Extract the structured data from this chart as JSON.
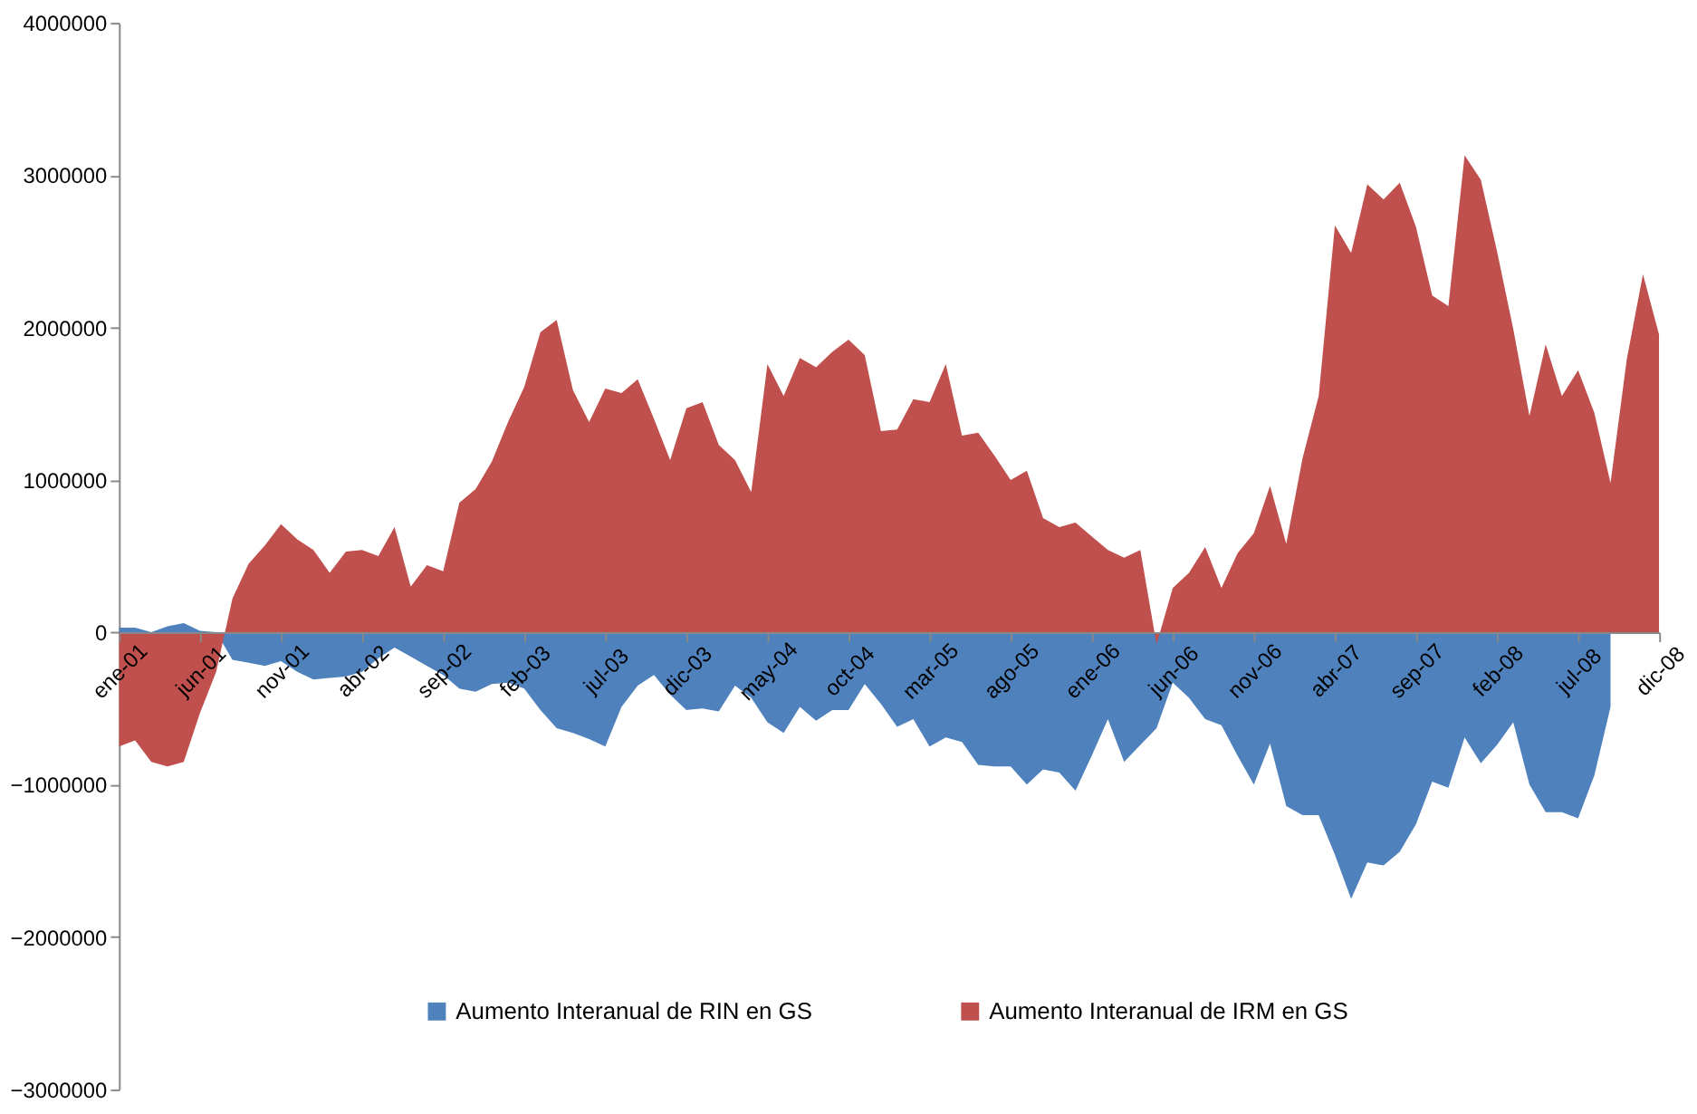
{
  "chart_data": {
    "type": "area",
    "categories": [
      "ene-01",
      null,
      null,
      null,
      null,
      "jun-01",
      null,
      null,
      null,
      null,
      "nov-01",
      null,
      null,
      null,
      null,
      "abr-02",
      null,
      null,
      null,
      null,
      "sep-02",
      null,
      null,
      null,
      null,
      "feb-03",
      null,
      null,
      null,
      null,
      "jul-03",
      null,
      null,
      null,
      null,
      "dic-03",
      null,
      null,
      null,
      null,
      "may-04",
      null,
      null,
      null,
      null,
      "oct-04",
      null,
      null,
      null,
      null,
      "mar-05",
      null,
      null,
      null,
      null,
      "ago-05",
      null,
      null,
      null,
      null,
      "ene-06",
      null,
      null,
      null,
      null,
      "jun-06",
      null,
      null,
      null,
      null,
      "nov-06",
      null,
      null,
      null,
      null,
      "abr-07",
      null,
      null,
      null,
      null,
      "sep-07",
      null,
      null,
      null,
      null,
      "feb-08",
      null,
      null,
      null,
      null,
      "jul-08",
      null,
      null,
      null,
      null,
      "dic-08"
    ],
    "series": [
      {
        "name": "Aumento Interanual de RIN en GS",
        "color": "#4f81bd",
        "values": [
          30000,
          30000,
          0,
          40000,
          60000,
          10000,
          0,
          -180000,
          -200000,
          -220000,
          -190000,
          -260000,
          -310000,
          -300000,
          -290000,
          -260000,
          -170000,
          -100000,
          -160000,
          -220000,
          -280000,
          -370000,
          -390000,
          -340000,
          -330000,
          -370000,
          -510000,
          -630000,
          -660000,
          -700000,
          -750000,
          -490000,
          -350000,
          -280000,
          -410000,
          -510000,
          -500000,
          -520000,
          -350000,
          -430000,
          -590000,
          -660000,
          -490000,
          -580000,
          -510000,
          -510000,
          -340000,
          -470000,
          -620000,
          -570000,
          -750000,
          -690000,
          -720000,
          -870000,
          -880000,
          -880000,
          -1000000,
          -900000,
          -920000,
          -1040000,
          -810000,
          -570000,
          -850000,
          -740000,
          -630000,
          -330000,
          -430000,
          -570000,
          -610000,
          -810000,
          -1000000,
          -730000,
          -1140000,
          -1200000,
          -1200000,
          -1460000,
          -1750000,
          -1510000,
          -1530000,
          -1440000,
          -1260000,
          -980000,
          -1020000,
          -690000,
          -860000,
          -740000,
          -590000,
          -1000000,
          -1180000,
          -1180000,
          -1220000,
          -940000,
          -490000,
          null,
          null,
          null
        ]
      },
      {
        "name": "Aumento Interanual de IRM en GS",
        "color": "#c0504d",
        "values": [
          -750000,
          -710000,
          -850000,
          -880000,
          -850000,
          -530000,
          -260000,
          220000,
          450000,
          570000,
          710000,
          610000,
          540000,
          390000,
          530000,
          540000,
          500000,
          690000,
          300000,
          440000,
          400000,
          850000,
          940000,
          1120000,
          1380000,
          1610000,
          1970000,
          2050000,
          1590000,
          1380000,
          1600000,
          1570000,
          1660000,
          1400000,
          1130000,
          1470000,
          1510000,
          1230000,
          1130000,
          920000,
          1760000,
          1550000,
          1800000,
          1740000,
          1840000,
          1920000,
          1820000,
          1320000,
          1330000,
          1530000,
          1510000,
          1760000,
          1290000,
          1310000,
          1160000,
          1000000,
          1060000,
          750000,
          690000,
          720000,
          630000,
          540000,
          490000,
          540000,
          -80000,
          290000,
          390000,
          560000,
          290000,
          520000,
          650000,
          960000,
          580000,
          1140000,
          1550000,
          2670000,
          2490000,
          2940000,
          2840000,
          2950000,
          2660000,
          2210000,
          2140000,
          3130000,
          2970000,
          2500000,
          1990000,
          1420000,
          1890000,
          1550000,
          1720000,
          1440000,
          980000,
          1790000,
          2350000,
          1950000
        ]
      }
    ],
    "ylim": [
      -3000000,
      4000000
    ],
    "yticks": [
      -3000000,
      -2000000,
      -1000000,
      0,
      1000000,
      2000000,
      3000000,
      4000000
    ],
    "grid": false,
    "legend": "bottom"
  }
}
